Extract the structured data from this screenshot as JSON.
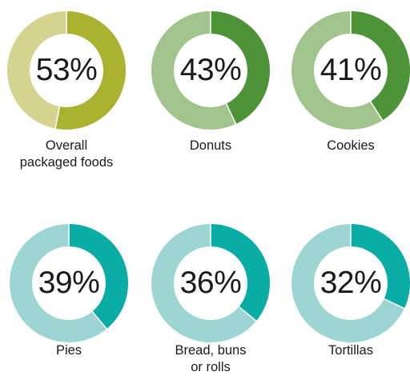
{
  "chart_data": {
    "type": "pie",
    "items": [
      {
        "label_lines": [
          "Overall",
          "packaged foods"
        ],
        "value": 53,
        "display": "53%",
        "color": "#aab22f",
        "rest_color": "#d5d48f"
      },
      {
        "label_lines": [
          "Donuts"
        ],
        "value": 43,
        "display": "43%",
        "color": "#4e9337",
        "rest_color": "#a1c48c"
      },
      {
        "label_lines": [
          "Cookies"
        ],
        "value": 41,
        "display": "41%",
        "color": "#4e9337",
        "rest_color": "#a1c48c"
      },
      {
        "label_lines": [
          "Pies"
        ],
        "value": 39,
        "display": "39%",
        "color": "#0aada5",
        "rest_color": "#9dd5d3"
      },
      {
        "label_lines": [
          "Bread, buns",
          "or rolls"
        ],
        "value": 36,
        "display": "36%",
        "color": "#0aada5",
        "rest_color": "#9dd5d3"
      },
      {
        "label_lines": [
          "Tortillas"
        ],
        "value": 32,
        "display": "32%",
        "color": "#0aada5",
        "rest_color": "#9dd5d3"
      }
    ]
  }
}
